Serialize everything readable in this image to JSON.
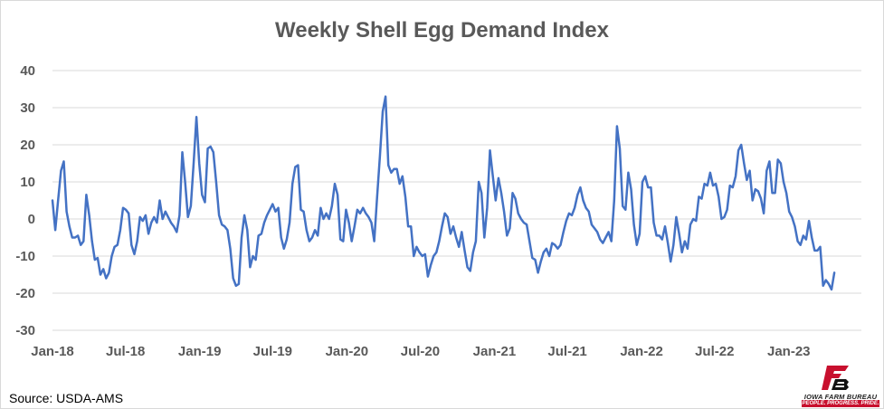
{
  "chart_data": {
    "type": "line",
    "title": "Weekly Shell Egg Demand Index",
    "source": "Source: USDA-AMS",
    "ylim": [
      -30,
      40
    ],
    "yticks": [
      -30,
      -20,
      -10,
      0,
      10,
      20,
      30,
      40
    ],
    "xlim": [
      "2018-01-01",
      "2023-06-30"
    ],
    "xticks": [
      {
        "label": "Jan-18",
        "date": "2018-01-01"
      },
      {
        "label": "Jul-18",
        "date": "2018-07-01"
      },
      {
        "label": "Jan-19",
        "date": "2019-01-01"
      },
      {
        "label": "Jul-19",
        "date": "2019-07-01"
      },
      {
        "label": "Jan-20",
        "date": "2020-01-01"
      },
      {
        "label": "Jul-20",
        "date": "2020-07-01"
      },
      {
        "label": "Jan-21",
        "date": "2021-01-01"
      },
      {
        "label": "Jul-21",
        "date": "2021-07-01"
      },
      {
        "label": "Jan-22",
        "date": "2022-01-01"
      },
      {
        "label": "Jul-22",
        "date": "2022-07-01"
      },
      {
        "label": "Jan-23",
        "date": "2023-01-01"
      }
    ],
    "grid": true,
    "series": [
      {
        "color": "#4472c4",
        "points": [
          [
            "2018-01-01",
            5
          ],
          [
            "2018-01-08",
            -3
          ],
          [
            "2018-01-15",
            5
          ],
          [
            "2018-01-22",
            13
          ],
          [
            "2018-01-29",
            15.5
          ],
          [
            "2018-02-05",
            2
          ],
          [
            "2018-02-12",
            -2
          ],
          [
            "2018-02-19",
            -5
          ],
          [
            "2018-02-26",
            -5
          ],
          [
            "2018-03-05",
            -4.5
          ],
          [
            "2018-03-12",
            -7
          ],
          [
            "2018-03-19",
            -6
          ],
          [
            "2018-03-26",
            6.5
          ],
          [
            "2018-04-02",
            1
          ],
          [
            "2018-04-09",
            -6
          ],
          [
            "2018-04-16",
            -11
          ],
          [
            "2018-04-23",
            -10.5
          ],
          [
            "2018-04-30",
            -15
          ],
          [
            "2018-05-07",
            -13.5
          ],
          [
            "2018-05-14",
            -16
          ],
          [
            "2018-05-21",
            -14.5
          ],
          [
            "2018-05-28",
            -10
          ],
          [
            "2018-06-04",
            -7.5
          ],
          [
            "2018-06-11",
            -7
          ],
          [
            "2018-06-18",
            -3
          ],
          [
            "2018-06-25",
            3
          ],
          [
            "2018-07-02",
            2.5
          ],
          [
            "2018-07-09",
            1.5
          ],
          [
            "2018-07-16",
            -7
          ],
          [
            "2018-07-23",
            -9.5
          ],
          [
            "2018-07-30",
            -6
          ],
          [
            "2018-08-06",
            0.5
          ],
          [
            "2018-08-13",
            -0.5
          ],
          [
            "2018-08-20",
            1
          ],
          [
            "2018-08-27",
            -4
          ],
          [
            "2018-09-03",
            -1
          ],
          [
            "2018-09-10",
            0.5
          ],
          [
            "2018-09-17",
            -1
          ],
          [
            "2018-09-24",
            5
          ],
          [
            "2018-10-01",
            0
          ],
          [
            "2018-10-08",
            2
          ],
          [
            "2018-10-15",
            0.5
          ],
          [
            "2018-10-22",
            -1
          ],
          [
            "2018-10-29",
            -2
          ],
          [
            "2018-11-05",
            -3.5
          ],
          [
            "2018-11-12",
            1
          ],
          [
            "2018-11-19",
            18
          ],
          [
            "2018-11-26",
            10
          ],
          [
            "2018-12-03",
            0.5
          ],
          [
            "2018-12-10",
            3.5
          ],
          [
            "2018-12-17",
            15
          ],
          [
            "2018-12-24",
            27.5
          ],
          [
            "2018-12-31",
            15
          ],
          [
            "2019-01-07",
            6.5
          ],
          [
            "2019-01-14",
            4.5
          ],
          [
            "2019-01-21",
            19
          ],
          [
            "2019-01-28",
            19.5
          ],
          [
            "2019-02-04",
            18
          ],
          [
            "2019-02-11",
            10
          ],
          [
            "2019-02-18",
            1
          ],
          [
            "2019-02-25",
            -1.5
          ],
          [
            "2019-03-04",
            -2
          ],
          [
            "2019-03-11",
            -3
          ],
          [
            "2019-03-18",
            -8
          ],
          [
            "2019-03-25",
            -16
          ],
          [
            "2019-04-01",
            -18
          ],
          [
            "2019-04-08",
            -17.5
          ],
          [
            "2019-04-15",
            -5
          ],
          [
            "2019-04-22",
            1
          ],
          [
            "2019-04-29",
            -3
          ],
          [
            "2019-05-06",
            -13
          ],
          [
            "2019-05-13",
            -10
          ],
          [
            "2019-05-20",
            -11
          ],
          [
            "2019-05-27",
            -4.5
          ],
          [
            "2019-06-03",
            -4
          ],
          [
            "2019-06-10",
            -1
          ],
          [
            "2019-06-17",
            1
          ],
          [
            "2019-06-24",
            2.5
          ],
          [
            "2019-07-01",
            4
          ],
          [
            "2019-07-08",
            2
          ],
          [
            "2019-07-15",
            3
          ],
          [
            "2019-07-22",
            -5
          ],
          [
            "2019-07-29",
            -8
          ],
          [
            "2019-08-05",
            -5.5
          ],
          [
            "2019-08-12",
            -1
          ],
          [
            "2019-08-19",
            9.5
          ],
          [
            "2019-08-26",
            14
          ],
          [
            "2019-09-02",
            14.5
          ],
          [
            "2019-09-09",
            2.5
          ],
          [
            "2019-09-16",
            2
          ],
          [
            "2019-09-23",
            -3
          ],
          [
            "2019-09-30",
            -6
          ],
          [
            "2019-10-07",
            -5
          ],
          [
            "2019-10-14",
            -3
          ],
          [
            "2019-10-21",
            -4.5
          ],
          [
            "2019-10-28",
            3
          ],
          [
            "2019-11-04",
            0
          ],
          [
            "2019-11-11",
            1.5
          ],
          [
            "2019-11-18",
            0
          ],
          [
            "2019-11-25",
            3.5
          ],
          [
            "2019-12-02",
            9.5
          ],
          [
            "2019-12-09",
            6.5
          ],
          [
            "2019-12-16",
            -5.5
          ],
          [
            "2019-12-23",
            -6
          ],
          [
            "2019-12-30",
            2.5
          ],
          [
            "2020-01-06",
            -1
          ],
          [
            "2020-01-13",
            -6
          ],
          [
            "2020-01-20",
            -2
          ],
          [
            "2020-01-27",
            2.5
          ],
          [
            "2020-02-03",
            1.5
          ],
          [
            "2020-02-10",
            3
          ],
          [
            "2020-02-17",
            1.5
          ],
          [
            "2020-02-24",
            0.5
          ],
          [
            "2020-03-02",
            -1
          ],
          [
            "2020-03-09",
            -6
          ],
          [
            "2020-03-16",
            6
          ],
          [
            "2020-03-23",
            17
          ],
          [
            "2020-03-30",
            29
          ],
          [
            "2020-04-06",
            33
          ],
          [
            "2020-04-13",
            14.5
          ],
          [
            "2020-04-20",
            12.5
          ],
          [
            "2020-04-27",
            13.5
          ],
          [
            "2020-05-04",
            13.5
          ],
          [
            "2020-05-11",
            9.5
          ],
          [
            "2020-05-18",
            11.5
          ],
          [
            "2020-05-25",
            6
          ],
          [
            "2020-06-01",
            -2
          ],
          [
            "2020-06-08",
            -2
          ],
          [
            "2020-06-15",
            -10
          ],
          [
            "2020-06-22",
            -7.5
          ],
          [
            "2020-06-29",
            -9
          ],
          [
            "2020-07-06",
            -10
          ],
          [
            "2020-07-13",
            -9.5
          ],
          [
            "2020-07-20",
            -15.5
          ],
          [
            "2020-07-27",
            -12.5
          ],
          [
            "2020-08-03",
            -10
          ],
          [
            "2020-08-10",
            -9
          ],
          [
            "2020-08-17",
            -6
          ],
          [
            "2020-08-24",
            -2
          ],
          [
            "2020-08-31",
            1.5
          ],
          [
            "2020-09-07",
            0.5
          ],
          [
            "2020-09-14",
            -4
          ],
          [
            "2020-09-21",
            -2
          ],
          [
            "2020-09-28",
            -5
          ],
          [
            "2020-10-05",
            -7.5
          ],
          [
            "2020-10-12",
            -3.5
          ],
          [
            "2020-10-19",
            -8.5
          ],
          [
            "2020-10-26",
            -13
          ],
          [
            "2020-11-02",
            -14
          ],
          [
            "2020-11-09",
            -9
          ],
          [
            "2020-11-16",
            -6
          ],
          [
            "2020-11-23",
            10
          ],
          [
            "2020-11-30",
            7
          ],
          [
            "2020-12-07",
            -5
          ],
          [
            "2020-12-14",
            3
          ],
          [
            "2020-12-21",
            18.5
          ],
          [
            "2020-12-28",
            11.5
          ],
          [
            "2021-01-04",
            5
          ],
          [
            "2021-01-11",
            11
          ],
          [
            "2021-01-18",
            7
          ],
          [
            "2021-01-25",
            2
          ],
          [
            "2021-02-01",
            -4.5
          ],
          [
            "2021-02-08",
            -2.5
          ],
          [
            "2021-02-15",
            7
          ],
          [
            "2021-02-22",
            5.5
          ],
          [
            "2021-03-01",
            1.5
          ],
          [
            "2021-03-08",
            0
          ],
          [
            "2021-03-15",
            -1
          ],
          [
            "2021-03-22",
            -1.5
          ],
          [
            "2021-03-29",
            -6
          ],
          [
            "2021-04-05",
            -10.5
          ],
          [
            "2021-04-12",
            -11
          ],
          [
            "2021-04-19",
            -14.5
          ],
          [
            "2021-04-26",
            -11.5
          ],
          [
            "2021-05-03",
            -9
          ],
          [
            "2021-05-10",
            -8
          ],
          [
            "2021-05-17",
            -10
          ],
          [
            "2021-05-24",
            -6.5
          ],
          [
            "2021-05-31",
            -7
          ],
          [
            "2021-06-07",
            -8
          ],
          [
            "2021-06-14",
            -7
          ],
          [
            "2021-06-21",
            -3.5
          ],
          [
            "2021-06-28",
            -0.5
          ],
          [
            "2021-07-05",
            1.5
          ],
          [
            "2021-07-12",
            1
          ],
          [
            "2021-07-19",
            3
          ],
          [
            "2021-07-26",
            6.5
          ],
          [
            "2021-08-02",
            8.5
          ],
          [
            "2021-08-09",
            5
          ],
          [
            "2021-08-16",
            3
          ],
          [
            "2021-08-23",
            2
          ],
          [
            "2021-08-30",
            -1.5
          ],
          [
            "2021-09-06",
            -2.5
          ],
          [
            "2021-09-13",
            -3.5
          ],
          [
            "2021-09-20",
            -5.5
          ],
          [
            "2021-09-27",
            -6.5
          ],
          [
            "2021-10-04",
            -5
          ],
          [
            "2021-10-11",
            -3.5
          ],
          [
            "2021-10-18",
            -6
          ],
          [
            "2021-10-25",
            5
          ],
          [
            "2021-11-01",
            25
          ],
          [
            "2021-11-08",
            19
          ],
          [
            "2021-11-15",
            3.5
          ],
          [
            "2021-11-22",
            2.5
          ],
          [
            "2021-11-29",
            12.5
          ],
          [
            "2021-12-06",
            8
          ],
          [
            "2021-12-13",
            -1.5
          ],
          [
            "2021-12-20",
            -7
          ],
          [
            "2021-12-27",
            -4
          ],
          [
            "2022-01-03",
            10
          ],
          [
            "2022-01-10",
            11.5
          ],
          [
            "2022-01-17",
            8.5
          ],
          [
            "2022-01-24",
            8.5
          ],
          [
            "2022-01-31",
            -1
          ],
          [
            "2022-02-07",
            -4.5
          ],
          [
            "2022-02-14",
            -4.5
          ],
          [
            "2022-02-21",
            -5.5
          ],
          [
            "2022-02-28",
            -2
          ],
          [
            "2022-03-07",
            -6.5
          ],
          [
            "2022-03-14",
            -11.5
          ],
          [
            "2022-03-21",
            -7
          ],
          [
            "2022-03-28",
            0.5
          ],
          [
            "2022-04-04",
            -4
          ],
          [
            "2022-04-11",
            -9
          ],
          [
            "2022-04-18",
            -6
          ],
          [
            "2022-04-25",
            -8
          ],
          [
            "2022-05-02",
            -1.5
          ],
          [
            "2022-05-09",
            0
          ],
          [
            "2022-05-16",
            -0.5
          ],
          [
            "2022-05-23",
            6
          ],
          [
            "2022-05-30",
            5.5
          ],
          [
            "2022-06-06",
            9.5
          ],
          [
            "2022-06-13",
            9
          ],
          [
            "2022-06-20",
            12.5
          ],
          [
            "2022-06-27",
            9
          ],
          [
            "2022-07-04",
            9.5
          ],
          [
            "2022-07-11",
            6
          ],
          [
            "2022-07-18",
            0
          ],
          [
            "2022-07-25",
            0.5
          ],
          [
            "2022-08-01",
            2.5
          ],
          [
            "2022-08-08",
            9
          ],
          [
            "2022-08-15",
            8.5
          ],
          [
            "2022-08-22",
            11.5
          ],
          [
            "2022-08-29",
            18.5
          ],
          [
            "2022-09-05",
            20
          ],
          [
            "2022-09-12",
            15
          ],
          [
            "2022-09-19",
            10.5
          ],
          [
            "2022-09-26",
            13
          ],
          [
            "2022-10-03",
            5
          ],
          [
            "2022-10-10",
            8
          ],
          [
            "2022-10-17",
            7.5
          ],
          [
            "2022-10-24",
            5.5
          ],
          [
            "2022-10-31",
            1.5
          ],
          [
            "2022-11-07",
            13
          ],
          [
            "2022-11-14",
            15.5
          ],
          [
            "2022-11-21",
            7
          ],
          [
            "2022-11-28",
            7
          ],
          [
            "2022-12-05",
            16
          ],
          [
            "2022-12-12",
            15
          ],
          [
            "2022-12-19",
            10
          ],
          [
            "2022-12-26",
            7
          ],
          [
            "2023-01-02",
            2
          ],
          [
            "2023-01-09",
            0.5
          ],
          [
            "2023-01-16",
            -2
          ],
          [
            "2023-01-23",
            -6
          ],
          [
            "2023-01-30",
            -7
          ],
          [
            "2023-02-06",
            -4.5
          ],
          [
            "2023-02-13",
            -5.5
          ],
          [
            "2023-02-20",
            -0.5
          ],
          [
            "2023-02-27",
            -5
          ],
          [
            "2023-03-06",
            -8.5
          ],
          [
            "2023-03-13",
            -8.5
          ],
          [
            "2023-03-20",
            -7.5
          ],
          [
            "2023-03-27",
            -18
          ],
          [
            "2023-04-03",
            -16.5
          ],
          [
            "2023-04-10",
            -17.5
          ],
          [
            "2023-04-17",
            -19
          ],
          [
            "2023-04-24",
            -14.5
          ]
        ]
      }
    ]
  },
  "logo": {
    "name": "IOWA FARM BUREAU",
    "tagline": "PEOPLE. PROGRESS. PRIDE.",
    "mark": "FB",
    "primary_color": "#c8102e",
    "secondary_color": "#111111"
  }
}
